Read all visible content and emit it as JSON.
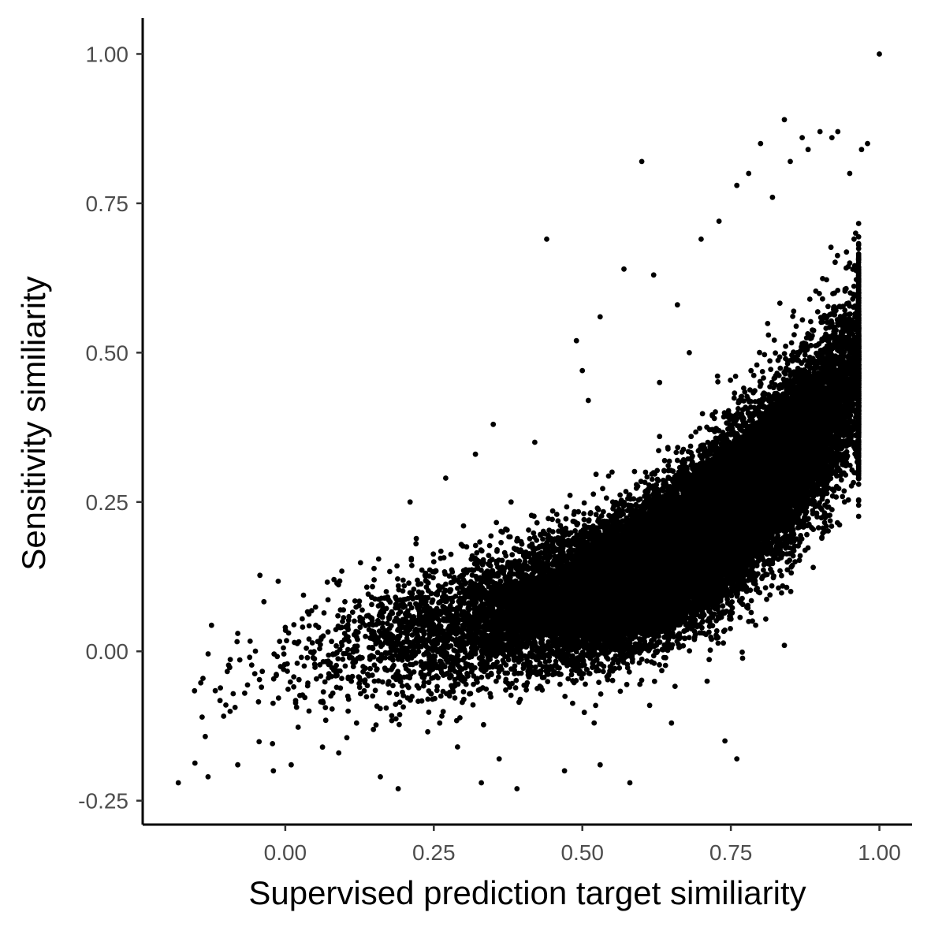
{
  "chart_data": {
    "type": "scatter",
    "title": "",
    "xlabel": "Supervised prediction target similiarity",
    "ylabel": "Sensitivity similiarity",
    "xlim": [
      -0.24,
      1.055
    ],
    "ylim": [
      -0.29,
      1.06
    ],
    "x_ticks": [
      0.0,
      0.25,
      0.5,
      0.75,
      1.0
    ],
    "x_tick_labels": [
      "0.00",
      "0.25",
      "0.50",
      "0.75",
      "1.00"
    ],
    "y_ticks": [
      -0.25,
      0.0,
      0.25,
      0.5,
      0.75,
      1.0
    ],
    "y_tick_labels": [
      "-0.25",
      "0.00",
      "0.25",
      "0.50",
      "0.75",
      "1.00"
    ],
    "grid": false,
    "legend": "none",
    "point_color": "#000000",
    "series": [
      {
        "values_note_free": true,
        "points": [
          [
            1.0,
            1.0
          ],
          [
            -0.18,
            -0.22
          ],
          [
            -0.14,
            -0.11
          ],
          [
            -0.13,
            -0.21
          ],
          [
            -0.1,
            -0.09
          ],
          [
            -0.08,
            0.03
          ],
          [
            -0.08,
            -0.19
          ],
          [
            -0.06,
            -0.01
          ],
          [
            -0.04,
            -0.06
          ],
          [
            -0.02,
            -0.2
          ],
          [
            0.0,
            0.04
          ],
          [
            0.01,
            -0.19
          ],
          [
            0.02,
            -0.02
          ],
          [
            0.04,
            -0.1
          ],
          [
            0.06,
            0.02
          ],
          [
            0.08,
            -0.07
          ],
          [
            0.09,
            -0.17
          ],
          [
            0.1,
            0.03
          ],
          [
            0.12,
            -0.12
          ],
          [
            0.14,
            0.06
          ],
          [
            0.15,
            -0.05
          ],
          [
            0.16,
            -0.21
          ],
          [
            0.17,
            0.1
          ],
          [
            0.19,
            -0.23
          ],
          [
            0.2,
            0.0
          ],
          [
            0.21,
            0.25
          ],
          [
            0.22,
            0.18
          ],
          [
            0.24,
            -0.08
          ],
          [
            0.25,
            0.15
          ],
          [
            0.26,
            -0.12
          ],
          [
            0.27,
            0.29
          ],
          [
            0.28,
            0.05
          ],
          [
            0.29,
            -0.16
          ],
          [
            0.3,
            0.21
          ],
          [
            0.32,
            0.33
          ],
          [
            0.33,
            -0.22
          ],
          [
            0.34,
            0.08
          ],
          [
            0.35,
            0.38
          ],
          [
            0.36,
            -0.18
          ],
          [
            0.38,
            0.25
          ],
          [
            0.39,
            -0.23
          ],
          [
            0.4,
            0.12
          ],
          [
            0.42,
            0.35
          ],
          [
            0.44,
            0.69
          ],
          [
            0.45,
            0.18
          ],
          [
            0.47,
            -0.2
          ],
          [
            0.49,
            0.52
          ],
          [
            0.5,
            0.47
          ],
          [
            0.51,
            0.42
          ],
          [
            0.53,
            0.56
          ],
          [
            0.53,
            -0.19
          ],
          [
            0.55,
            0.3
          ],
          [
            0.57,
            0.64
          ],
          [
            0.58,
            -0.22
          ],
          [
            0.6,
            0.82
          ],
          [
            0.62,
            0.63
          ],
          [
            0.63,
            0.45
          ],
          [
            0.65,
            -0.12
          ],
          [
            0.66,
            0.58
          ],
          [
            0.68,
            0.5
          ],
          [
            0.7,
            0.69
          ],
          [
            0.71,
            -0.05
          ],
          [
            0.73,
            0.72
          ],
          [
            0.74,
            -0.15
          ],
          [
            0.76,
            0.78
          ],
          [
            0.76,
            -0.18
          ],
          [
            0.78,
            0.8
          ],
          [
            0.8,
            0.85
          ],
          [
            0.82,
            0.76
          ],
          [
            0.84,
            0.89
          ],
          [
            0.85,
            0.82
          ],
          [
            0.87,
            0.86
          ],
          [
            0.88,
            0.84
          ],
          [
            0.9,
            0.87
          ],
          [
            0.92,
            0.86
          ],
          [
            0.93,
            0.87
          ],
          [
            0.95,
            0.8
          ],
          [
            0.97,
            0.84
          ],
          [
            0.98,
            0.85
          ],
          [
            0.84,
            0.01
          ],
          [
            0.81,
            0.15
          ],
          [
            0.78,
            0.05
          ],
          [
            0.86,
            0.3
          ],
          [
            0.9,
            0.5
          ],
          [
            0.93,
            0.55
          ],
          [
            0.95,
            0.65
          ],
          [
            0.96,
            0.7
          ],
          [
            0.72,
            0.35
          ],
          [
            0.68,
            0.2
          ],
          [
            0.64,
            0.15
          ]
        ]
      }
    ]
  }
}
